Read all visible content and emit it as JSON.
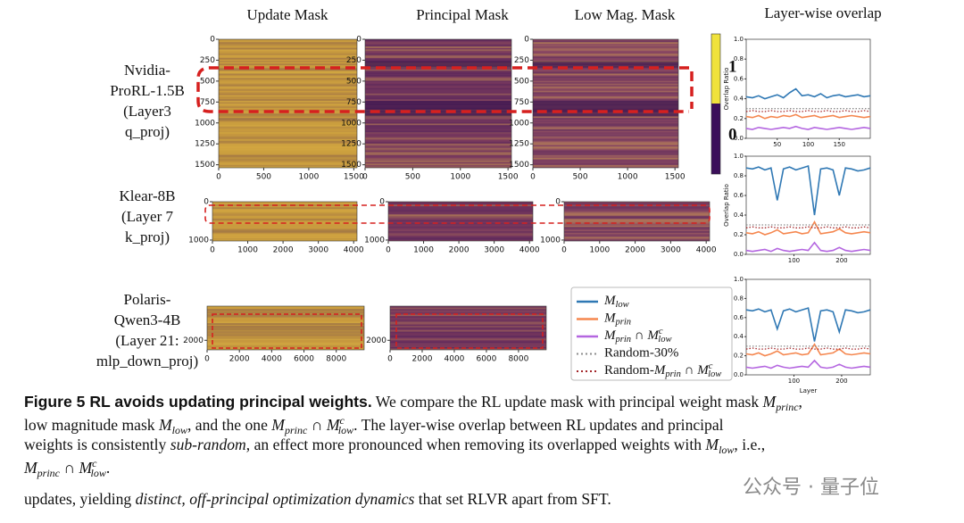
{
  "figure": {
    "columns": [
      "Update Mask",
      "Principal Mask",
      "Low Mag. Mask"
    ],
    "overlap_title": "Layer-wise overlap",
    "rows": [
      {
        "label": [
          "Nvidia-",
          "ProRL-1.5B",
          "(Layer3",
          "q_proj)"
        ],
        "ylim": [
          0,
          1536
        ],
        "xlim": [
          0,
          1536
        ],
        "yticks": [
          0,
          250,
          500,
          750,
          1000,
          1250,
          1500
        ],
        "xticks": [
          0,
          500,
          1000,
          1500
        ]
      },
      {
        "label": [
          "Klear-8B",
          "(Layer 7",
          "k_proj)"
        ],
        "ylim": [
          0,
          1024
        ],
        "xlim": [
          0,
          4096
        ],
        "yticks": [
          0,
          1000
        ],
        "xticks": [
          0,
          1000,
          2000,
          3000,
          4000
        ]
      },
      {
        "label": [
          "Polaris-",
          "Qwen3-4B",
          "(Layer 21:",
          "mlp_down_proj)"
        ],
        "ylim": [
          0,
          2560
        ],
        "xlim": [
          0,
          9728
        ],
        "yticks": [
          2000
        ],
        "xticks": [
          0,
          2000,
          4000,
          6000,
          8000
        ]
      }
    ],
    "colorbar": {
      "ticks": [
        1,
        0
      ]
    }
  },
  "chart_data": [
    {
      "type": "line",
      "ylabel": "Overlap Ratio",
      "xlim": [
        0,
        200
      ],
      "ylim": [
        0,
        1
      ],
      "xticks": [
        50,
        100,
        150
      ],
      "yticks": [
        {
          "value": 0,
          "label": "0.0"
        },
        0.2,
        0.4,
        0.6,
        0.8,
        {
          "value": 1,
          "label": "1.0"
        }
      ],
      "x": [
        0,
        10,
        20,
        30,
        40,
        50,
        60,
        70,
        80,
        90,
        100,
        110,
        120,
        130,
        140,
        150,
        160,
        170,
        180,
        190,
        200
      ],
      "series": [
        {
          "name": [
            [
              "M",
              "i"
            ],
            [
              "low",
              "sub"
            ]
          ],
          "color": "#2f78b4",
          "dash": "solid",
          "values": [
            0.42,
            0.41,
            0.43,
            0.4,
            0.42,
            0.44,
            0.41,
            0.46,
            0.5,
            0.43,
            0.44,
            0.42,
            0.45,
            0.41,
            0.43,
            0.44,
            0.42,
            0.43,
            0.44,
            0.42,
            0.43
          ]
        },
        {
          "name": [
            [
              "M",
              "i"
            ],
            [
              "prin",
              "sub"
            ]
          ],
          "color": "#f5874f",
          "dash": "solid",
          "values": [
            0.22,
            0.21,
            0.23,
            0.2,
            0.22,
            0.21,
            0.23,
            0.22,
            0.24,
            0.21,
            0.22,
            0.23,
            0.21,
            0.22,
            0.23,
            0.21,
            0.22,
            0.23,
            0.22,
            0.21,
            0.22
          ]
        },
        {
          "name": [
            [
              "M",
              "i"
            ],
            [
              "prin",
              "sub"
            ],
            [
              " ∩ ",
              ""
            ],
            [
              "M",
              "i"
            ],
            [
              "c",
              "sup"
            ],
            [
              "low",
              "sub"
            ]
          ],
          "color": "#b466e0",
          "dash": "solid",
          "values": [
            0.1,
            0.09,
            0.11,
            0.1,
            0.09,
            0.1,
            0.11,
            0.1,
            0.12,
            0.1,
            0.09,
            0.11,
            0.1,
            0.09,
            0.1,
            0.11,
            0.1,
            0.09,
            0.1,
            0.11,
            0.1
          ]
        },
        {
          "name": [
            [
              "Random-30%",
              ""
            ]
          ],
          "color": "#8c8c8c",
          "dash": "dotted",
          "values": [
            0.3,
            0.3,
            0.3,
            0.3,
            0.3,
            0.3,
            0.3,
            0.3,
            0.3,
            0.3,
            0.3,
            0.3,
            0.3,
            0.3,
            0.3,
            0.3,
            0.3,
            0.3,
            0.3,
            0.3,
            0.3
          ]
        },
        {
          "name": [
            [
              "Random-",
              ""
            ],
            [
              "M",
              "i"
            ],
            [
              "prin",
              "sub"
            ],
            [
              " ∩ ",
              ""
            ],
            [
              "M",
              "i"
            ],
            [
              "c",
              "sup"
            ],
            [
              "low",
              "sub"
            ]
          ],
          "color": "#a3262a",
          "dash": "dotted",
          "values": [
            0.27,
            0.28,
            0.27,
            0.27,
            0.28,
            0.27,
            0.27,
            0.28,
            0.27,
            0.27,
            0.28,
            0.27,
            0.27,
            0.28,
            0.27,
            0.27,
            0.28,
            0.27,
            0.27,
            0.28,
            0.27
          ]
        }
      ]
    },
    {
      "type": "line",
      "ylabel": "Overlap Ratio",
      "xlim": [
        0,
        260
      ],
      "ylim": [
        0,
        1
      ],
      "xticks": [
        100,
        200
      ],
      "yticks": [
        {
          "value": 0,
          "label": "0.0"
        },
        0.2,
        0.4,
        0.6,
        0.8,
        {
          "value": 1,
          "label": "1.0"
        }
      ],
      "x": [
        0,
        13,
        26,
        39,
        52,
        65,
        78,
        91,
        104,
        117,
        130,
        143,
        156,
        169,
        182,
        195,
        208,
        221,
        234,
        247,
        260
      ],
      "series": [
        {
          "name": [
            [
              "M",
              "i"
            ],
            [
              "low",
              "sub"
            ]
          ],
          "color": "#2f78b4",
          "dash": "solid",
          "values": [
            0.88,
            0.87,
            0.89,
            0.86,
            0.88,
            0.55,
            0.87,
            0.89,
            0.86,
            0.88,
            0.9,
            0.4,
            0.87,
            0.88,
            0.86,
            0.6,
            0.88,
            0.87,
            0.85,
            0.86,
            0.88
          ]
        },
        {
          "name": [
            [
              "M",
              "i"
            ],
            [
              "prin",
              "sub"
            ]
          ],
          "color": "#f5874f",
          "dash": "solid",
          "values": [
            0.22,
            0.21,
            0.23,
            0.2,
            0.22,
            0.25,
            0.21,
            0.22,
            0.23,
            0.21,
            0.22,
            0.33,
            0.21,
            0.22,
            0.23,
            0.26,
            0.22,
            0.21,
            0.22,
            0.23,
            0.22
          ]
        },
        {
          "name": [
            [
              "M",
              "i"
            ],
            [
              "prin",
              "sub"
            ],
            [
              " ∩ ",
              ""
            ],
            [
              "M",
              "i"
            ],
            [
              "c",
              "sup"
            ],
            [
              "low",
              "sub"
            ]
          ],
          "color": "#b466e0",
          "dash": "solid",
          "values": [
            0.04,
            0.03,
            0.04,
            0.05,
            0.03,
            0.06,
            0.04,
            0.03,
            0.04,
            0.05,
            0.04,
            0.12,
            0.04,
            0.03,
            0.04,
            0.07,
            0.04,
            0.03,
            0.04,
            0.05,
            0.04
          ]
        },
        {
          "name": [
            [
              "Random-30%",
              ""
            ]
          ],
          "color": "#8c8c8c",
          "dash": "dotted",
          "values": [
            0.3,
            0.3,
            0.3,
            0.3,
            0.3,
            0.3,
            0.3,
            0.3,
            0.3,
            0.3,
            0.3,
            0.3,
            0.3,
            0.3,
            0.3,
            0.3,
            0.3,
            0.3,
            0.3,
            0.3,
            0.3
          ]
        },
        {
          "name": [
            [
              "Random-",
              ""
            ],
            [
              "M",
              "i"
            ],
            [
              "prin",
              "sub"
            ],
            [
              " ∩ ",
              ""
            ],
            [
              "M",
              "i"
            ],
            [
              "c",
              "sup"
            ],
            [
              "low",
              "sub"
            ]
          ],
          "color": "#a3262a",
          "dash": "dotted",
          "values": [
            0.27,
            0.28,
            0.27,
            0.27,
            0.28,
            0.27,
            0.27,
            0.28,
            0.27,
            0.27,
            0.28,
            0.27,
            0.27,
            0.28,
            0.27,
            0.27,
            0.28,
            0.27,
            0.27,
            0.28,
            0.27
          ]
        }
      ]
    },
    {
      "type": "line",
      "ylabel": "Overlap Ratio",
      "xlabel": "Layer",
      "xlim": [
        0,
        260
      ],
      "ylim": [
        0,
        1
      ],
      "xticks": [
        100,
        200
      ],
      "yticks": [
        {
          "value": 0,
          "label": "0.0"
        },
        0.2,
        0.4,
        0.6,
        0.8,
        {
          "value": 1,
          "label": "1.0"
        }
      ],
      "x": [
        0,
        13,
        26,
        39,
        52,
        65,
        78,
        91,
        104,
        117,
        130,
        143,
        156,
        169,
        182,
        195,
        208,
        221,
        234,
        247,
        260
      ],
      "series": [
        {
          "name": [
            [
              "M",
              "i"
            ],
            [
              "low",
              "sub"
            ]
          ],
          "color": "#2f78b4",
          "dash": "solid",
          "values": [
            0.68,
            0.67,
            0.69,
            0.66,
            0.68,
            0.48,
            0.67,
            0.69,
            0.66,
            0.68,
            0.7,
            0.35,
            0.67,
            0.68,
            0.66,
            0.45,
            0.68,
            0.67,
            0.65,
            0.66,
            0.68
          ]
        },
        {
          "name": [
            [
              "M",
              "i"
            ],
            [
              "prin",
              "sub"
            ]
          ],
          "color": "#f5874f",
          "dash": "solid",
          "values": [
            0.22,
            0.21,
            0.23,
            0.2,
            0.22,
            0.25,
            0.21,
            0.22,
            0.23,
            0.21,
            0.22,
            0.32,
            0.21,
            0.22,
            0.23,
            0.27,
            0.22,
            0.21,
            0.22,
            0.23,
            0.22
          ]
        },
        {
          "name": [
            [
              "M",
              "i"
            ],
            [
              "prin",
              "sub"
            ],
            [
              " ∩ ",
              ""
            ],
            [
              "M",
              "i"
            ],
            [
              "c",
              "sup"
            ],
            [
              "low",
              "sub"
            ]
          ],
          "color": "#b466e0",
          "dash": "solid",
          "values": [
            0.08,
            0.07,
            0.08,
            0.09,
            0.07,
            0.1,
            0.08,
            0.07,
            0.08,
            0.09,
            0.08,
            0.15,
            0.08,
            0.07,
            0.08,
            0.11,
            0.08,
            0.07,
            0.08,
            0.09,
            0.08
          ]
        },
        {
          "name": [
            [
              "Random-30%",
              ""
            ]
          ],
          "color": "#8c8c8c",
          "dash": "dotted",
          "values": [
            0.3,
            0.3,
            0.3,
            0.3,
            0.3,
            0.3,
            0.3,
            0.3,
            0.3,
            0.3,
            0.3,
            0.3,
            0.3,
            0.3,
            0.3,
            0.3,
            0.3,
            0.3,
            0.3,
            0.3,
            0.3
          ]
        },
        {
          "name": [
            [
              "Random-",
              ""
            ],
            [
              "M",
              "i"
            ],
            [
              "prin",
              "sub"
            ],
            [
              " ∩ ",
              ""
            ],
            [
              "M",
              "i"
            ],
            [
              "c",
              "sup"
            ],
            [
              "low",
              "sub"
            ]
          ],
          "color": "#a3262a",
          "dash": "dotted",
          "values": [
            0.27,
            0.28,
            0.27,
            0.27,
            0.28,
            0.27,
            0.27,
            0.28,
            0.27,
            0.27,
            0.28,
            0.27,
            0.27,
            0.28,
            0.27,
            0.27,
            0.28,
            0.27,
            0.27,
            0.28,
            0.27
          ]
        }
      ]
    }
  ],
  "caption": [
    [
      [
        "Figure 5  RL avoids updating principal weights.",
        "b"
      ],
      [
        " We compare the RL update mask with principal weight mask ",
        ""
      ],
      [
        "M",
        "i"
      ],
      [
        "princ",
        "sub"
      ],
      [
        ",",
        ""
      ]
    ],
    [
      [
        "low magnitude mask ",
        ""
      ],
      [
        "M",
        "i"
      ],
      [
        "low",
        "sub"
      ],
      [
        ", and the one ",
        ""
      ],
      [
        "M",
        "i"
      ],
      [
        "princ",
        "sub"
      ],
      [
        " ∩ ",
        ""
      ],
      [
        "M",
        "i"
      ],
      [
        "c",
        "sup"
      ],
      [
        "low",
        "sub"
      ],
      [
        ". The layer-wise overlap between RL updates and principal",
        ""
      ]
    ],
    [
      [
        "weights is consistently ",
        ""
      ],
      [
        "sub-random",
        "i"
      ],
      [
        ", an effect more pronounced when removing its overlapped weights with ",
        ""
      ],
      [
        "M",
        "i"
      ],
      [
        "low",
        "sub"
      ],
      [
        ", i.e.,",
        ""
      ]
    ],
    [
      [
        "M",
        "i"
      ],
      [
        "princ",
        "sub"
      ],
      [
        " ∩ ",
        ""
      ],
      [
        "M",
        "i"
      ],
      [
        "c",
        "sup"
      ],
      [
        "low",
        "sub"
      ],
      [
        ".",
        ""
      ]
    ]
  ],
  "body_text": [
    [
      "updates, yielding ",
      ""
    ],
    [
      "distinct, off-principal optimization dynamics",
      "i"
    ],
    [
      " that set RLVR apart from SFT.",
      ""
    ]
  ],
  "watermark": "公众号 · 量子位"
}
